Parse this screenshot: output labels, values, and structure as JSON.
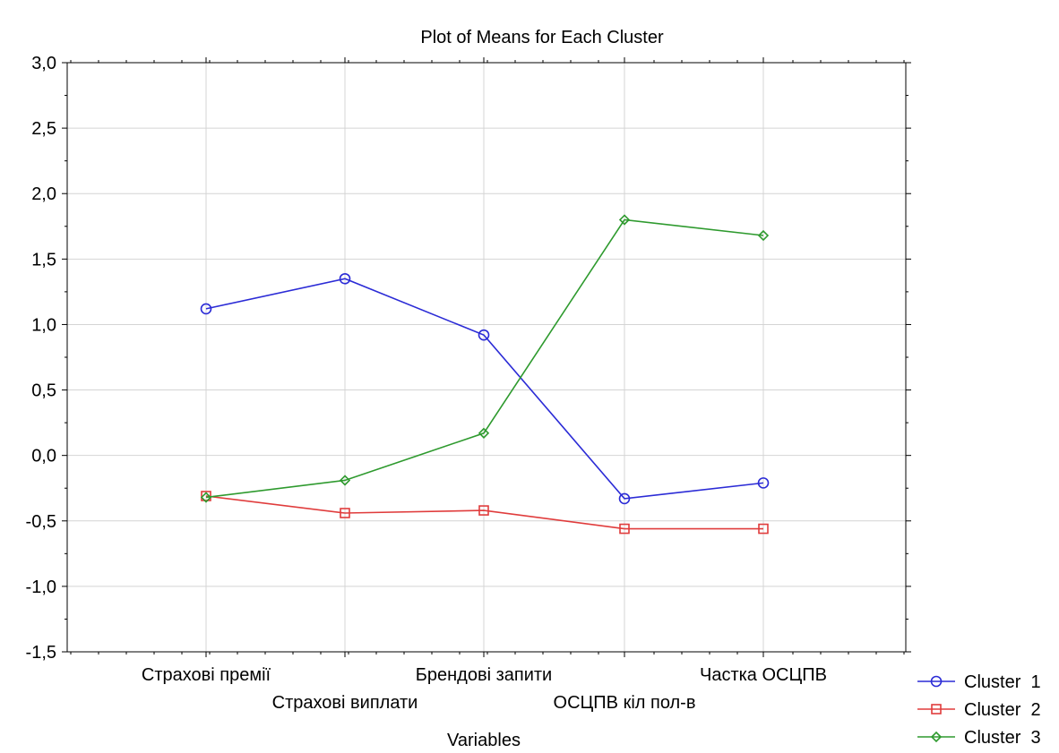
{
  "chart_data": {
    "type": "line",
    "title": "Plot of Means for Each Cluster",
    "xlabel": "Variables",
    "ylabel": "",
    "ylim": [
      -1.5,
      3.0
    ],
    "yticks": [
      "-1,5",
      "-1,0",
      "-0,5",
      "0,0",
      "0,5",
      "1,0",
      "1,5",
      "2,0",
      "2,5",
      "3,0"
    ],
    "categories": [
      "Страхові премії",
      "Страхові виплати",
      "Брендові запити",
      "ОСЦПВ кіл пол-в",
      "Частка ОСЦПВ"
    ],
    "grid": true,
    "legend_position": "bottom-right",
    "series": [
      {
        "name": "Cluster  1",
        "color": "#2b2bd6",
        "marker": "circle",
        "values": [
          1.12,
          1.35,
          0.92,
          -0.33,
          -0.21
        ]
      },
      {
        "name": "Cluster  2",
        "color": "#e03c3c",
        "marker": "square",
        "values": [
          -0.31,
          -0.44,
          -0.42,
          -0.56,
          -0.56
        ]
      },
      {
        "name": "Cluster  3",
        "color": "#2e9a2e",
        "marker": "diamond",
        "values": [
          -0.32,
          -0.19,
          0.17,
          1.8,
          1.68
        ]
      }
    ]
  }
}
